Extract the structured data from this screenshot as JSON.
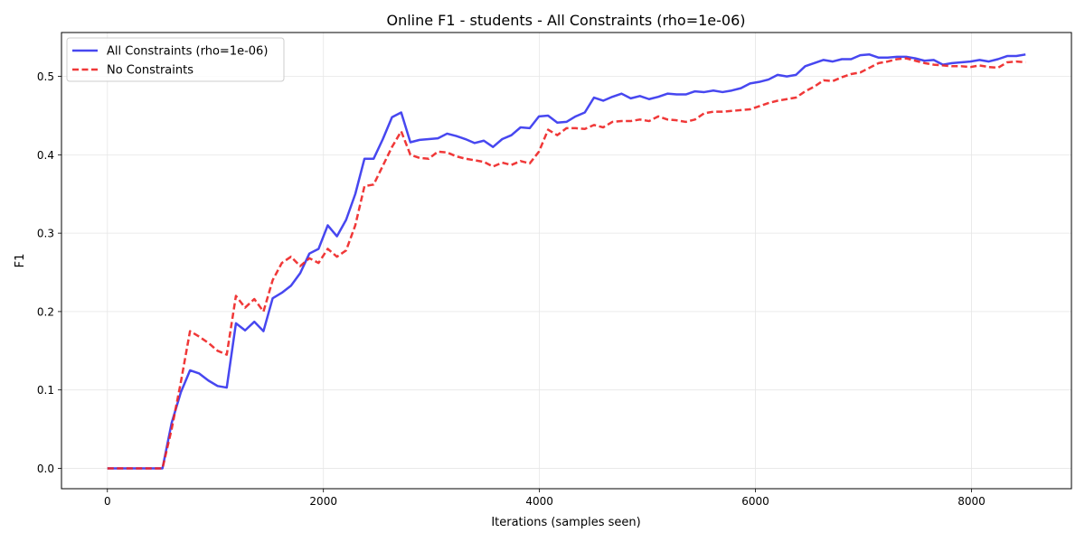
{
  "chart_data": {
    "type": "line",
    "title": "Online F1 - students - All Constraints (rho=1e-06)",
    "xlabel": "Iterations (samples seen)",
    "ylabel": "F1",
    "xlim": [
      -425,
      8925
    ],
    "ylim": [
      -0.026,
      0.556
    ],
    "xticks": [
      0,
      2000,
      4000,
      6000,
      8000
    ],
    "xtick_labels": [
      "0",
      "2000",
      "4000",
      "6000",
      "8000"
    ],
    "yticks": [
      0.0,
      0.1,
      0.2,
      0.3,
      0.4,
      0.5
    ],
    "ytick_labels": [
      "0.0",
      "0.1",
      "0.2",
      "0.3",
      "0.4",
      "0.5"
    ],
    "grid": true,
    "legend_position": "top-left",
    "series": [
      {
        "name": "All Constraints (rho=1e-06)",
        "color": "#3333ee",
        "style": "solid",
        "x": [
          0,
          85,
          170,
          255,
          340,
          425,
          510,
          595,
          680,
          765,
          850,
          935,
          1020,
          1105,
          1190,
          1275,
          1360,
          1445,
          1530,
          1615,
          1700,
          1785,
          1870,
          1955,
          2040,
          2125,
          2210,
          2295,
          2380,
          2465,
          2550,
          2635,
          2720,
          2805,
          2890,
          2975,
          3060,
          3145,
          3230,
          3315,
          3400,
          3485,
          3570,
          3655,
          3740,
          3825,
          3910,
          3995,
          4080,
          4165,
          4250,
          4335,
          4420,
          4505,
          4590,
          4675,
          4760,
          4845,
          4930,
          5015,
          5100,
          5185,
          5270,
          5355,
          5440,
          5525,
          5610,
          5695,
          5780,
          5865,
          5950,
          6035,
          6120,
          6205,
          6290,
          6375,
          6460,
          6545,
          6630,
          6715,
          6800,
          6885,
          6970,
          7055,
          7140,
          7225,
          7310,
          7395,
          7480,
          7565,
          7650,
          7735,
          7820,
          7905,
          7990,
          8075,
          8160,
          8245,
          8330,
          8415,
          8500
        ],
        "values": [
          0.0,
          0.0,
          0.0,
          0.0,
          0.0,
          0.0,
          0.0,
          0.058,
          0.097,
          0.125,
          0.121,
          0.112,
          0.105,
          0.103,
          0.185,
          0.176,
          0.187,
          0.175,
          0.217,
          0.224,
          0.233,
          0.249,
          0.274,
          0.28,
          0.31,
          0.296,
          0.317,
          0.35,
          0.395,
          0.395,
          0.42,
          0.448,
          0.454,
          0.416,
          0.419,
          0.42,
          0.421,
          0.427,
          0.424,
          0.42,
          0.415,
          0.418,
          0.41,
          0.42,
          0.425,
          0.435,
          0.434,
          0.449,
          0.45,
          0.441,
          0.442,
          0.449,
          0.454,
          0.473,
          0.469,
          0.474,
          0.478,
          0.472,
          0.475,
          0.471,
          0.474,
          0.478,
          0.477,
          0.477,
          0.481,
          0.48,
          0.482,
          0.48,
          0.482,
          0.485,
          0.491,
          0.493,
          0.496,
          0.502,
          0.5,
          0.502,
          0.513,
          0.517,
          0.521,
          0.519,
          0.522,
          0.522,
          0.527,
          0.528,
          0.524,
          0.524,
          0.525,
          0.525,
          0.523,
          0.52,
          0.521,
          0.515,
          0.517,
          0.518,
          0.519,
          0.521,
          0.519,
          0.522,
          0.526,
          0.526,
          0.528
        ]
      },
      {
        "name": "No Constraints",
        "color": "#ee2222",
        "style": "dashed",
        "x": [
          0,
          85,
          170,
          255,
          340,
          425,
          510,
          595,
          680,
          765,
          850,
          935,
          1020,
          1105,
          1190,
          1275,
          1360,
          1445,
          1530,
          1615,
          1700,
          1785,
          1870,
          1955,
          2040,
          2125,
          2210,
          2295,
          2380,
          2465,
          2550,
          2635,
          2720,
          2805,
          2890,
          2975,
          3060,
          3145,
          3230,
          3315,
          3400,
          3485,
          3570,
          3655,
          3740,
          3825,
          3910,
          3995,
          4080,
          4165,
          4250,
          4335,
          4420,
          4505,
          4590,
          4675,
          4760,
          4845,
          4930,
          5015,
          5100,
          5185,
          5270,
          5355,
          5440,
          5525,
          5610,
          5695,
          5780,
          5865,
          5950,
          6035,
          6120,
          6205,
          6290,
          6375,
          6460,
          6545,
          6630,
          6715,
          6800,
          6885,
          6970,
          7055,
          7140,
          7225,
          7310,
          7395,
          7480,
          7565,
          7650,
          7735,
          7820,
          7905,
          7990,
          8075,
          8160,
          8245,
          8330,
          8415,
          8500
        ],
        "values": [
          0.0,
          0.0,
          0.0,
          0.0,
          0.0,
          0.0,
          0.0,
          0.05,
          0.11,
          0.175,
          0.168,
          0.16,
          0.15,
          0.145,
          0.22,
          0.205,
          0.216,
          0.2,
          0.24,
          0.262,
          0.27,
          0.258,
          0.268,
          0.262,
          0.28,
          0.27,
          0.278,
          0.31,
          0.36,
          0.362,
          0.386,
          0.41,
          0.43,
          0.4,
          0.396,
          0.395,
          0.404,
          0.403,
          0.398,
          0.395,
          0.393,
          0.391,
          0.385,
          0.39,
          0.387,
          0.392,
          0.389,
          0.404,
          0.432,
          0.425,
          0.434,
          0.434,
          0.433,
          0.438,
          0.435,
          0.442,
          0.443,
          0.443,
          0.445,
          0.443,
          0.449,
          0.445,
          0.444,
          0.442,
          0.445,
          0.453,
          0.455,
          0.455,
          0.456,
          0.457,
          0.458,
          0.462,
          0.466,
          0.469,
          0.471,
          0.473,
          0.481,
          0.487,
          0.495,
          0.494,
          0.499,
          0.503,
          0.505,
          0.511,
          0.517,
          0.519,
          0.522,
          0.523,
          0.52,
          0.517,
          0.515,
          0.514,
          0.513,
          0.513,
          0.512,
          0.514,
          0.512,
          0.511,
          0.518,
          0.519,
          0.518
        ]
      }
    ]
  }
}
